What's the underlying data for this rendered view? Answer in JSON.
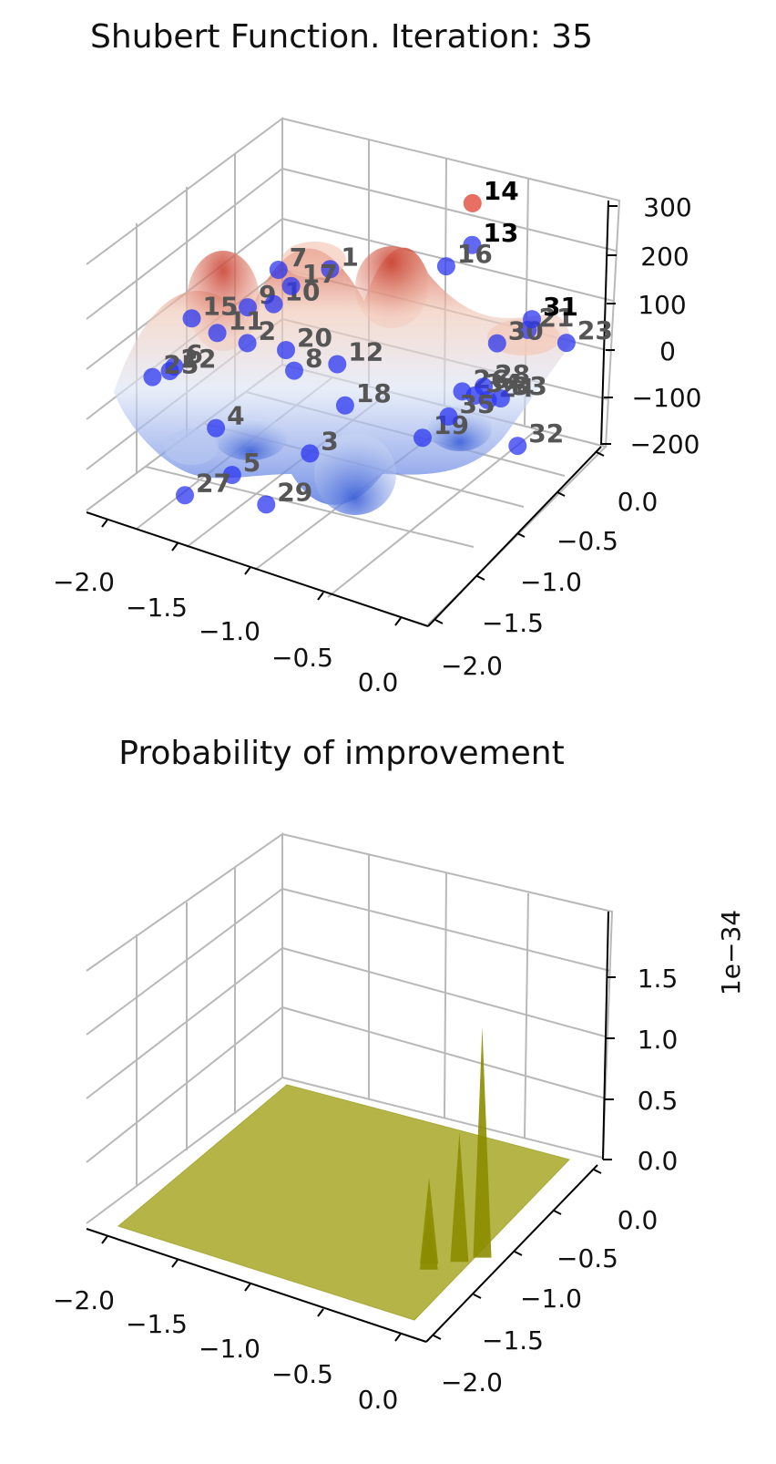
{
  "colors": {
    "surface_low": "#6f8ff0",
    "surface_mid": "#dde6f5",
    "surface_high": "#d9664f",
    "point_default": "#2b35f0",
    "point_best": "#e0402e",
    "acq_surface": "#a8a81e",
    "acq_spike": "#8c8c00"
  },
  "chart_data": [
    {
      "type": "surface3d",
      "title": "Shubert Function. Iteration: 35",
      "x_ticks": [
        "−2.0",
        "−1.5",
        "−1.0",
        "−0.5",
        "0.0"
      ],
      "y_ticks": [
        "0.0",
        "−0.5",
        "−1.0",
        "−1.5",
        "−2.0"
      ],
      "z_ticks": [
        "300",
        "200",
        "100",
        "0",
        "−100",
        "−200"
      ],
      "xlim": [
        -2,
        0
      ],
      "ylim": [
        -2,
        0
      ],
      "zlim": [
        -200,
        300
      ],
      "points": [
        {
          "label": "1",
          "x": -1.25,
          "y": -0.7,
          "z": 80
        },
        {
          "label": "2",
          "x": -1.5,
          "y": -1.15,
          "z": 0
        },
        {
          "label": "3",
          "x": -0.9,
          "y": -1.6,
          "z": -60
        },
        {
          "label": "4",
          "x": -1.45,
          "y": -1.6,
          "z": -70
        },
        {
          "label": "5",
          "x": -1.2,
          "y": -1.9,
          "z": -80
        },
        {
          "label": "6",
          "x": -1.85,
          "y": -1.3,
          "z": -50
        },
        {
          "label": "7",
          "x": -1.5,
          "y": -0.8,
          "z": 70
        },
        {
          "label": "8",
          "x": -1.2,
          "y": -1.2,
          "z": -10
        },
        {
          "label": "9",
          "x": -1.55,
          "y": -1.05,
          "z": 40
        },
        {
          "label": "10",
          "x": -1.45,
          "y": -0.95,
          "z": 40
        },
        {
          "label": "11",
          "x": -1.65,
          "y": -1.2,
          "z": 10
        },
        {
          "label": "12",
          "x": -1.0,
          "y": -1.1,
          "z": 5
        },
        {
          "label": "13",
          "x": -0.6,
          "y": -0.35,
          "z": 130
        },
        {
          "label": "14",
          "x": -0.65,
          "y": -0.25,
          "z": 180
        },
        {
          "label": "15",
          "x": -1.8,
          "y": -1.2,
          "z": 20
        },
        {
          "label": "16",
          "x": -0.7,
          "y": -0.45,
          "z": 100
        },
        {
          "label": "17",
          "x": -1.4,
          "y": -0.85,
          "z": 60
        },
        {
          "label": "18",
          "x": -0.85,
          "y": -1.3,
          "z": -20
        },
        {
          "label": "19",
          "x": -0.5,
          "y": -1.1,
          "z": -70
        },
        {
          "label": "20",
          "x": -1.3,
          "y": -1.1,
          "z": 0
        },
        {
          "label": "21",
          "x": -0.3,
          "y": -0.3,
          "z": 10
        },
        {
          "label": "22",
          "x": -1.85,
          "y": -1.35,
          "z": -50
        },
        {
          "label": "23",
          "x": -0.1,
          "y": -0.25,
          "z": 0
        },
        {
          "label": "24",
          "x": -0.3,
          "y": -0.75,
          "z": -40
        },
        {
          "label": "25",
          "x": -1.9,
          "y": -1.45,
          "z": -50
        },
        {
          "label": "26",
          "x": -0.45,
          "y": -0.75,
          "z": -40
        },
        {
          "label": "27",
          "x": -1.45,
          "y": -1.95,
          "z": -130
        },
        {
          "label": "28",
          "x": -0.35,
          "y": -0.7,
          "z": -30
        },
        {
          "label": "29",
          "x": -1.0,
          "y": -1.9,
          "z": -110
        },
        {
          "label": "30",
          "x": -0.35,
          "y": -0.55,
          "z": 20
        },
        {
          "label": "31",
          "x": -0.25,
          "y": -0.35,
          "z": 40
        },
        {
          "label": "32",
          "x": -0.1,
          "y": -0.8,
          "z": -90
        },
        {
          "label": "33",
          "x": -0.25,
          "y": -0.7,
          "z": -40
        },
        {
          "label": "34",
          "x": -0.35,
          "y": -0.8,
          "z": -30
        },
        {
          "label": "35",
          "x": -0.4,
          "y": -1.0,
          "z": -40
        }
      ]
    },
    {
      "type": "surface3d",
      "title": "Probability of  improvement",
      "x_ticks": [
        "−2.0",
        "−1.5",
        "−1.0",
        "−0.5",
        "0.0"
      ],
      "y_ticks": [
        "0.0",
        "−0.5",
        "−1.0",
        "−1.5",
        "−2.0"
      ],
      "z_ticks": [
        "1.5",
        "1.0",
        "0.5",
        "0.0"
      ],
      "z_offset_label": "1e−34",
      "xlim": [
        -2,
        0
      ],
      "ylim": [
        -2,
        0
      ],
      "zlim": [
        0,
        1.9e-34
      ],
      "peaks": [
        {
          "x": -0.3,
          "y": -0.55,
          "z": 1.6e-34
        },
        {
          "x": -0.45,
          "y": -0.95,
          "z": 6e-35
        },
        {
          "x": -0.35,
          "y": -0.75,
          "z": 9e-35
        },
        {
          "x": -0.4,
          "y": -1.05,
          "z": 4e-35
        }
      ]
    }
  ]
}
